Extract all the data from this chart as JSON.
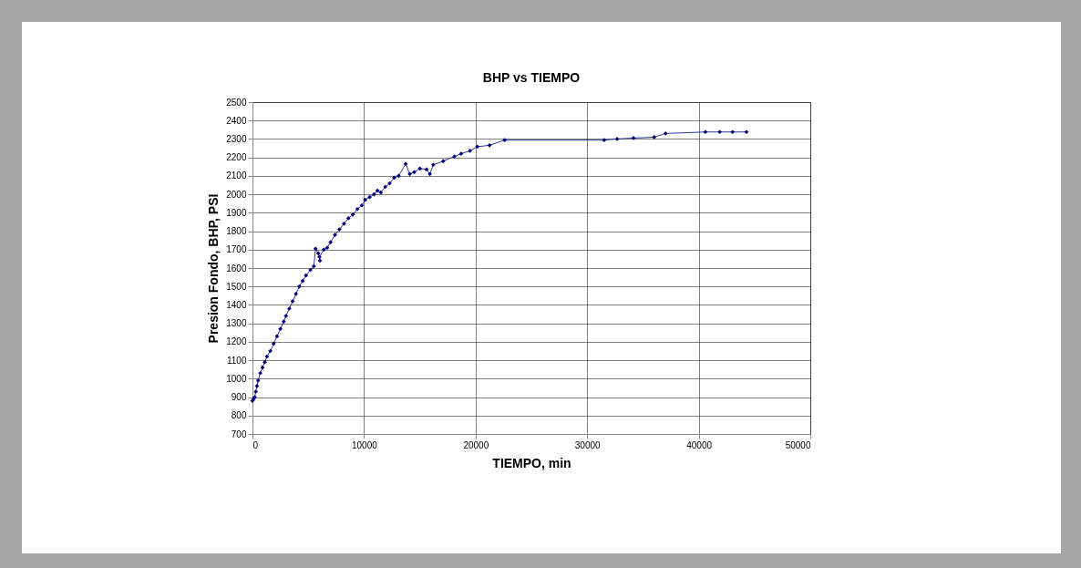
{
  "chart_data": {
    "type": "line",
    "title": "BHP  vs  TIEMPO",
    "xlabel": "TIEMPO,  min",
    "ylabel": "Presion Fondo, BHP, PSI",
    "x": [
      0,
      100,
      200,
      300,
      400,
      500,
      700,
      900,
      1100,
      1300,
      1600,
      1900,
      2200,
      2500,
      2800,
      3000,
      3300,
      3600,
      3900,
      4200,
      4500,
      4800,
      5200,
      5500,
      5650,
      5900,
      6050,
      6000,
      6400,
      6700,
      7000,
      7400,
      7800,
      8200,
      8600,
      9000,
      9400,
      9800,
      10100,
      10500,
      10900,
      11200,
      11500,
      11900,
      12300,
      12700,
      13100,
      13730,
      14100,
      14500,
      15000,
      15600,
      15900,
      16200,
      17100,
      18100,
      18700,
      19500,
      20150,
      21250,
      22600,
      31530,
      32680,
      34150,
      36000,
      37030,
      40600,
      41880,
      43030,
      44280
    ],
    "series": [
      {
        "color": "#000080",
        "values": [
          880,
          890,
          900,
          930,
          960,
          990,
          1030,
          1060,
          1090,
          1120,
          1150,
          1190,
          1230,
          1270,
          1310,
          1340,
          1380,
          1420,
          1460,
          1500,
          1530,
          1560,
          1590,
          1610,
          1705,
          1680,
          1640,
          1660,
          1700,
          1710,
          1740,
          1780,
          1810,
          1840,
          1870,
          1890,
          1920,
          1940,
          1970,
          1985,
          2000,
          2020,
          2010,
          2040,
          2060,
          2090,
          2100,
          2165,
          2110,
          2120,
          2140,
          2135,
          2110,
          2160,
          2180,
          2205,
          2220,
          2236,
          2258,
          2266,
          2294,
          2294,
          2300,
          2305,
          2310,
          2330,
          2338,
          2338,
          2338,
          2338
        ]
      }
    ],
    "xlim": [
      0,
      50000
    ],
    "xticks": [
      0,
      10000,
      20000,
      30000,
      40000,
      50000
    ],
    "ylim": [
      700,
      2500
    ],
    "yticks": [
      700,
      800,
      900,
      1000,
      1100,
      1200,
      1300,
      1400,
      1500,
      1600,
      1700,
      1800,
      1900,
      2000,
      2100,
      2200,
      2300,
      2400,
      2500
    ],
    "grid": true,
    "legend": false,
    "marker": "diamond",
    "line_style": "solid"
  }
}
